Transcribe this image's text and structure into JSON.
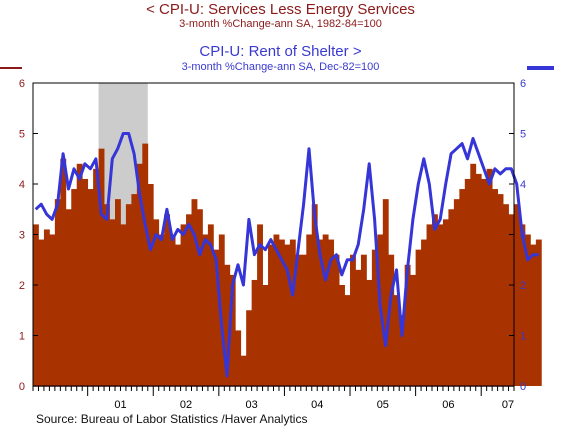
{
  "title_left": "<  CPI-U: Services Less Energy Services",
  "subtitle_left": "3-month %Change-ann        SA, 1982-84=100",
  "title_right": "CPI-U: Rent of Shelter  >",
  "subtitle_right": "3-month %Change-ann        SA, Dec-82=100",
  "source": "Source:  Bureau of Labor Statistics /Haver Analytics",
  "colors": {
    "bars": "#a83200",
    "line": "#3535d8",
    "recession": "#cccccc",
    "left_axis": "#8b1a1a",
    "right_axis": "#3a3ad0"
  },
  "chart_data": {
    "type": "bar",
    "x_start": "2000-03",
    "x_end": "2007-06",
    "x_tick_labels": [
      "01",
      "02",
      "03",
      "04",
      "05",
      "06",
      "07"
    ],
    "ylim_left": [
      0,
      6
    ],
    "ylim_right": [
      0,
      6
    ],
    "y_ticks": [
      0,
      1,
      2,
      3,
      4,
      5,
      6
    ],
    "recession_shading": [
      "2001-03",
      "2001-11"
    ],
    "series": [
      {
        "name": "CPI-U: Services Less Energy Services",
        "type": "bar",
        "axis": "left",
        "values": [
          3.2,
          2.9,
          3.1,
          3.0,
          3.7,
          4.5,
          3.5,
          3.9,
          4.4,
          4.1,
          3.9,
          4.3,
          4.7,
          3.6,
          3.3,
          3.7,
          3.2,
          3.6,
          3.8,
          4.4,
          4.8,
          4.0,
          3.3,
          3.0,
          3.4,
          3.0,
          2.8,
          3.2,
          3.4,
          3.7,
          3.5,
          3.0,
          3.2,
          2.7,
          3.0,
          2.4,
          2.2,
          1.1,
          0.6,
          1.5,
          2.1,
          3.2,
          2.0,
          2.8,
          3.0,
          2.9,
          2.8,
          2.9,
          2.6,
          2.6,
          3.0,
          3.6,
          2.9,
          3.0,
          2.9,
          2.6,
          2.0,
          1.8,
          2.6,
          2.3,
          2.6,
          2.1,
          2.7,
          3.0,
          3.7,
          2.6,
          1.8,
          1.4,
          2.4,
          2.2,
          2.7,
          2.9,
          3.2,
          3.4,
          3.2,
          3.3,
          3.5,
          3.7,
          3.9,
          4.1,
          4.4,
          4.2,
          4.1,
          4.3,
          3.9,
          3.8,
          3.6,
          3.4,
          3.6,
          3.2,
          3.0,
          2.8,
          2.9
        ]
      },
      {
        "name": "CPI-U: Rent of Shelter",
        "type": "line",
        "axis": "right",
        "values": [
          3.5,
          3.6,
          3.4,
          3.3,
          3.6,
          4.6,
          3.9,
          4.3,
          4.1,
          4.4,
          4.3,
          4.5,
          3.4,
          3.3,
          4.5,
          4.7,
          5.0,
          5.0,
          4.6,
          3.8,
          3.2,
          2.7,
          3.0,
          2.9,
          3.5,
          2.9,
          3.1,
          3.0,
          3.2,
          3.0,
          2.6,
          2.9,
          2.8,
          2.5,
          1.2,
          0.2,
          2.0,
          2.4,
          2.0,
          3.3,
          2.6,
          2.8,
          2.7,
          2.9,
          2.7,
          2.5,
          2.3,
          1.8,
          2.7,
          3.6,
          4.7,
          3.4,
          2.6,
          2.1,
          2.5,
          2.6,
          2.2,
          2.5,
          2.5,
          2.8,
          3.5,
          4.4,
          3.3,
          1.6,
          0.8,
          1.8,
          2.3,
          1.0,
          2.3,
          3.3,
          4.0,
          4.5,
          4.0,
          3.1,
          3.3,
          4.0,
          4.6,
          4.7,
          4.8,
          4.5,
          4.9,
          4.6,
          4.3,
          4.0,
          4.3,
          4.2,
          4.3,
          4.3,
          4.0,
          3.0,
          2.5,
          2.6,
          2.6
        ]
      }
    ]
  }
}
